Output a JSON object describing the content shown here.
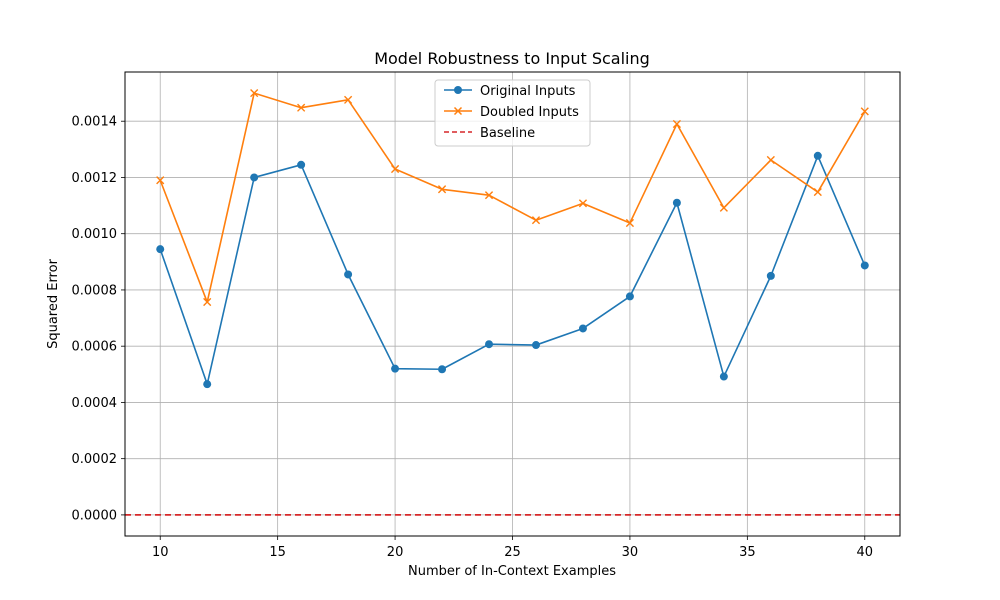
{
  "chart_data": {
    "type": "line",
    "title": "Model Robustness to Input Scaling",
    "xlabel": "Number of In-Context Examples",
    "ylabel": "Squared Error",
    "x": [
      10,
      12,
      14,
      16,
      18,
      20,
      22,
      24,
      26,
      28,
      30,
      32,
      34,
      36,
      38,
      40
    ],
    "xlim": [
      8.5,
      41.5
    ],
    "ylim": [
      -7.5e-05,
      0.001575
    ],
    "xticks": [
      10,
      15,
      20,
      25,
      30,
      35,
      40
    ],
    "yticks": [
      0.0,
      0.0002,
      0.0004,
      0.0006,
      0.0008,
      0.001,
      0.0012,
      0.0014
    ],
    "xtick_labels": [
      "10",
      "15",
      "20",
      "25",
      "30",
      "35",
      "40"
    ],
    "ytick_labels": [
      "0.0000",
      "0.0002",
      "0.0004",
      "0.0006",
      "0.0008",
      "0.0010",
      "0.0012",
      "0.0014"
    ],
    "grid": true,
    "legend_position": "top-center",
    "series": [
      {
        "name": "Original Inputs",
        "color": "#1f77b4",
        "marker": "circle",
        "values": [
          0.000945,
          0.000465,
          0.0012,
          0.001245,
          0.000855,
          0.00052,
          0.000518,
          0.000607,
          0.000604,
          0.000663,
          0.000777,
          0.00111,
          0.000492,
          0.00085,
          0.001277,
          0.000887
        ]
      },
      {
        "name": "Doubled Inputs",
        "color": "#ff7f0e",
        "marker": "x",
        "values": [
          0.00119,
          0.000757,
          0.0015,
          0.001448,
          0.001476,
          0.00123,
          0.001158,
          0.001137,
          0.001048,
          0.001108,
          0.001038,
          0.00139,
          0.001092,
          0.001262,
          0.001148,
          0.001435
        ]
      }
    ],
    "reference_lines": [
      {
        "name": "Baseline",
        "y": 0.0,
        "color": "#d62728",
        "style": "dashed"
      }
    ]
  }
}
